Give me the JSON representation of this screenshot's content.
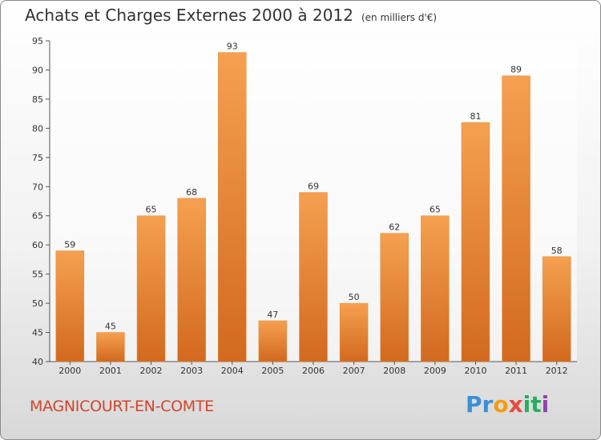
{
  "chart_data": {
    "type": "bar",
    "title": "Achats et Charges Externes 2000 à 2012",
    "subtitle": "(en milliers d'€)",
    "categories": [
      "2000",
      "2001",
      "2002",
      "2003",
      "2004",
      "2005",
      "2006",
      "2007",
      "2008",
      "2009",
      "2010",
      "2011",
      "2012"
    ],
    "values": [
      59,
      45,
      65,
      68,
      93,
      47,
      69,
      50,
      62,
      65,
      81,
      89,
      58
    ],
    "ylim": [
      40,
      95
    ],
    "yticks": [
      40,
      45,
      50,
      55,
      60,
      65,
      70,
      75,
      80,
      85,
      90,
      95
    ],
    "grid": false,
    "bar_color_top": "#f5a050",
    "bar_color_bottom": "#d2691e"
  },
  "footer": {
    "commune": "MAGNICOURT-EN-COMTE",
    "logo_letters": [
      {
        "char": "P",
        "color": "#3a8fd6"
      },
      {
        "char": "r",
        "color": "#3a8fd6"
      },
      {
        "char": "o",
        "color": "#f39c12"
      },
      {
        "char": "x",
        "color": "#e74c3c"
      },
      {
        "char": "i",
        "color": "#27ae60"
      },
      {
        "char": "t",
        "color": "#27ae60"
      },
      {
        "char": "i",
        "color": "#8e44ad"
      }
    ]
  }
}
